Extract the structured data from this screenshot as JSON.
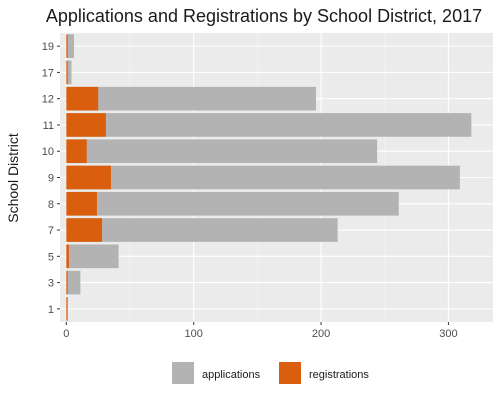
{
  "chart_data": {
    "type": "bar",
    "orientation": "horizontal",
    "stacking": "overlay",
    "title": "Applications and Registrations by School District, 2017",
    "xlabel": "",
    "ylabel": "School District",
    "categories": [
      "1",
      "3",
      "5",
      "7",
      "8",
      "9",
      "10",
      "11",
      "12",
      "17",
      "19"
    ],
    "series": [
      {
        "name": "applications",
        "color": "#b3b3b3",
        "values": [
          1,
          11,
          41,
          213,
          261,
          309,
          244,
          318,
          196,
          4,
          6
        ]
      },
      {
        "name": "registrations",
        "color": "#d95f0e",
        "values": [
          1,
          1,
          2,
          28,
          24,
          35,
          16,
          31,
          25,
          1,
          1
        ]
      }
    ],
    "xlim": [
      -5,
      335
    ],
    "xticks": [
      0,
      100,
      200,
      300
    ],
    "grid": true,
    "legend_position": "bottom",
    "panel_color": "#ebebeb"
  }
}
